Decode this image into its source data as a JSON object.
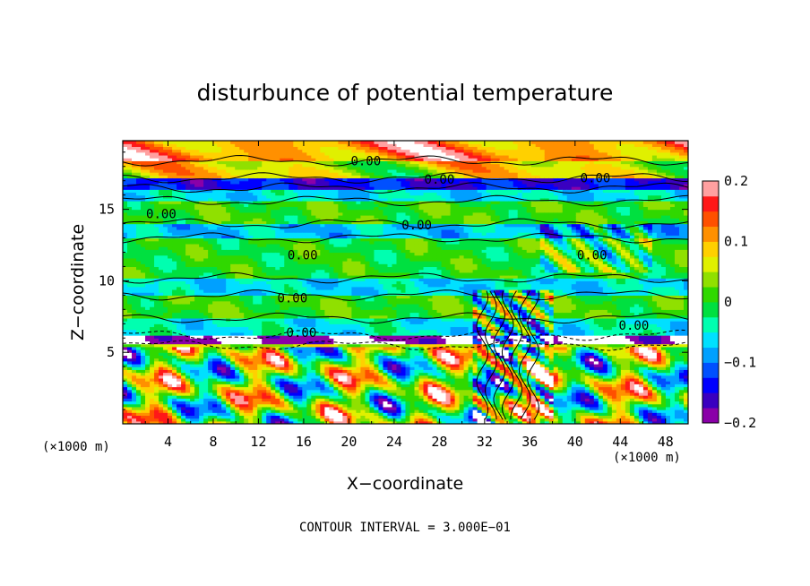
{
  "chart_data": {
    "type": "heatmap",
    "title": "disturbunce of potential temperature",
    "xlabel": "X−coordinate",
    "ylabel": "Z−coordinate",
    "x_unit": "(×1000 m)",
    "z_unit": "(×1000 m)",
    "xlim": [
      0,
      50
    ],
    "ylim": [
      0,
      19.8
    ],
    "x_ticks": [
      4,
      8,
      12,
      16,
      20,
      24,
      28,
      32,
      36,
      40,
      44,
      48
    ],
    "x_tick_labels": [
      "4",
      "8",
      "12",
      "16",
      "20",
      "24",
      "28",
      "32",
      "36",
      "40",
      "44",
      "48"
    ],
    "y_ticks": [
      5,
      10,
      15
    ],
    "y_tick_labels": [
      "5",
      "10",
      "15"
    ],
    "colorbar": {
      "min": -0.2,
      "max": 0.2,
      "ticks": [
        0.2,
        0.1,
        0,
        -0.1,
        -0.2
      ],
      "tick_labels": [
        "0.2",
        "0.1",
        "0",
        "−0.1",
        "−0.2"
      ],
      "colors": [
        "#8a00a8",
        "#3a00c0",
        "#0000ff",
        "#0050ff",
        "#00a0ff",
        "#00e0ff",
        "#00ffb0",
        "#00e040",
        "#30d800",
        "#90e000",
        "#e0f000",
        "#ffd000",
        "#ff9000",
        "#ff5000",
        "#ff1818",
        "#ffa0a0"
      ]
    },
    "contour_interval_text": "CONTOUR INTERVAL = 3.000E−01",
    "contour_labels": [
      {
        "text": "0.00",
        "x": 21.5,
        "z": 18.4
      },
      {
        "text": "0.00",
        "x": 28.0,
        "z": 17.1
      },
      {
        "text": "0.00",
        "x": 41.8,
        "z": 17.2
      },
      {
        "text": "0.00",
        "x": 3.4,
        "z": 14.7
      },
      {
        "text": "0.00",
        "x": 26.0,
        "z": 13.9
      },
      {
        "text": "0.00",
        "x": 15.9,
        "z": 11.8
      },
      {
        "text": "0.00",
        "x": 41.5,
        "z": 11.8
      },
      {
        "text": "0.00",
        "x": 15.0,
        "z": 8.8
      },
      {
        "text": "0.00",
        "x": 15.8,
        "z": 6.4
      },
      {
        "text": "0.00",
        "x": 45.2,
        "z": 6.9
      }
    ],
    "field_bands_z": [
      {
        "z0": 0.0,
        "z1": 5.5,
        "value": 0.05
      },
      {
        "z0": 5.5,
        "z1": 6.2,
        "value": -0.2
      },
      {
        "z0": 6.2,
        "z1": 7.4,
        "value": -0.05
      },
      {
        "z0": 7.4,
        "z1": 9.0,
        "value": 0.01
      },
      {
        "z0": 9.0,
        "z1": 10.2,
        "value": -0.06
      },
      {
        "z0": 10.2,
        "z1": 13.0,
        "value": 0.0
      },
      {
        "z0": 13.0,
        "z1": 14.0,
        "value": -0.07
      },
      {
        "z0": 14.0,
        "z1": 15.6,
        "value": 0.01
      },
      {
        "z0": 15.6,
        "z1": 16.5,
        "value": -0.06
      },
      {
        "z0": 16.5,
        "z1": 17.2,
        "value": -0.14
      },
      {
        "z0": 17.2,
        "z1": 18.4,
        "value": 0.06
      },
      {
        "z0": 18.4,
        "z1": 19.8,
        "value": 0.12
      }
    ]
  }
}
